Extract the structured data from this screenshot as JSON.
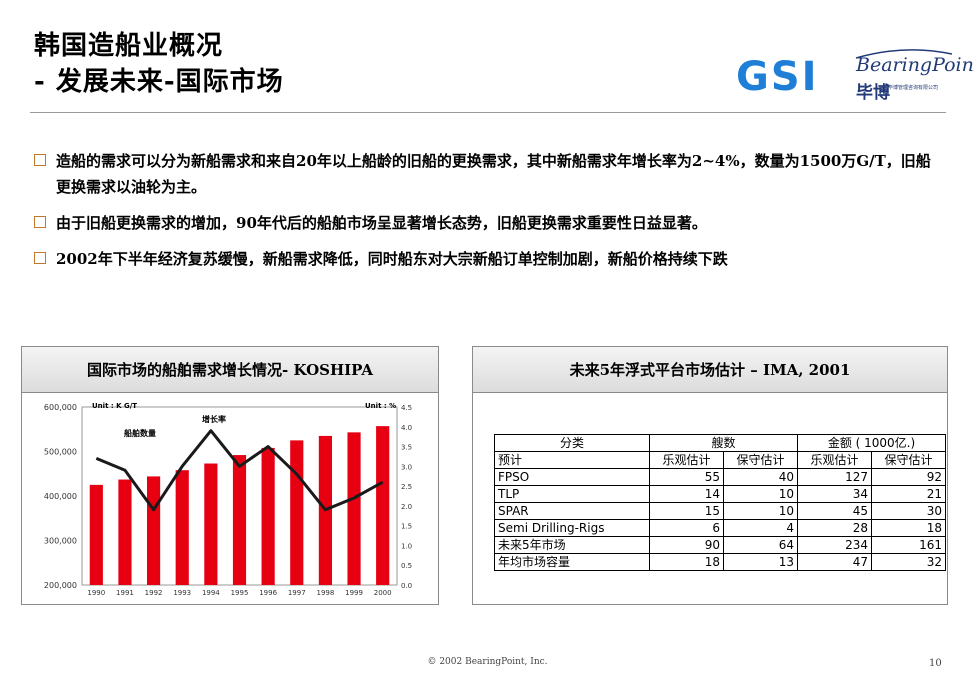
{
  "title": {
    "line1": "韩国造船业概况",
    "line2": "- 发展未来-国际市场"
  },
  "logo": {
    "gsi": "GSI",
    "bearingpoint": "BearingPoint",
    "chinese": "毕博",
    "tagline": "毕博管理咨询有限公司"
  },
  "bullets": [
    "造船的需求可以分为新船需求和来自20年以上船龄的旧船的更换需求，其中新船需求年增长率为2~4%，数量为1500万G/T，旧船更换需求以油轮为主。",
    "由于旧船更换需求的增加，90年代后的船舶市场呈显著增长态势，旧船更换需求重要性日益显著。",
    "2002年下半年经济复苏缓慢，新船需求降低，同时船东对大宗新船订单控制加剧，新船价格持续下跌"
  ],
  "panel_left": {
    "title": "国际市场的船舶需求增长情况- KOSHIPA"
  },
  "panel_right": {
    "title": "未来5年浮式平台市场估计 – IMA, 2001"
  },
  "chart_data": {
    "type": "bar",
    "title": "国际市场的船舶需求增长情况- KOSHIPA",
    "categories": [
      "1990",
      "1991",
      "1992",
      "1993",
      "1994",
      "1995",
      "1996",
      "1997",
      "1998",
      "1999",
      "2000"
    ],
    "left_unit": "Unit : K G/T",
    "right_unit": "Unit : %",
    "left_ticks": [
      "600,000",
      "500,000",
      "400,000",
      "300,000",
      "200,000"
    ],
    "right_ticks": [
      "4.5",
      "4.0",
      "3.5",
      "3.0",
      "2.5",
      "2.0",
      "1.5",
      "1.0",
      "0.5",
      "0.0"
    ],
    "ylim_left": [
      200000,
      600000
    ],
    "ylim_right": [
      0,
      4.5
    ],
    "series": [
      {
        "name": "船舶数量",
        "type": "bar",
        "axis": "left",
        "color": "#e60012",
        "values": [
          425000,
          437000,
          444000,
          458000,
          473000,
          492000,
          508000,
          525000,
          535000,
          543000,
          557000
        ]
      },
      {
        "name": "增长率",
        "type": "line",
        "axis": "right",
        "color": "#1a1a1a",
        "values": [
          3.2,
          2.9,
          1.9,
          3.0,
          3.9,
          3.0,
          3.5,
          2.8,
          1.9,
          2.2,
          2.6
        ]
      }
    ]
  },
  "table": {
    "header1": [
      "分类",
      "艘数",
      "金额 ( 1000亿.)"
    ],
    "header2": [
      "预计",
      "乐观估计",
      "保守估计",
      "乐观估计",
      "保守估计"
    ],
    "rows": [
      [
        "FPSO",
        "55",
        "40",
        "127",
        "92"
      ],
      [
        "TLP",
        "14",
        "10",
        "34",
        "21"
      ],
      [
        "SPAR",
        "15",
        "10",
        "45",
        "30"
      ],
      [
        "Semi Drilling-Rigs",
        "6",
        "4",
        "28",
        "18"
      ],
      [
        "未来5年市场",
        "90",
        "64",
        "234",
        "161"
      ],
      [
        "年均市场容量",
        "18",
        "13",
        "47",
        "32"
      ]
    ]
  },
  "footer": "© 2002 BearingPoint, Inc.",
  "page_number": "10"
}
